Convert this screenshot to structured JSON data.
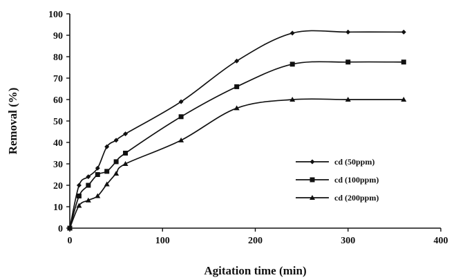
{
  "chart_data": {
    "type": "line",
    "xlabel": "Agitation time (min)",
    "ylabel": "Removal (%)",
    "xlim": [
      0,
      400
    ],
    "ylim": [
      0,
      100
    ],
    "xticks": [
      0,
      100,
      200,
      300,
      400
    ],
    "yticks": [
      0,
      10,
      20,
      30,
      40,
      50,
      60,
      70,
      80,
      90,
      100
    ],
    "grid": false,
    "legend_position": "center-right",
    "series": [
      {
        "name": "cd (50ppm)",
        "marker": "diamond",
        "x": [
          0,
          10,
          20,
          30,
          40,
          50,
          60,
          120,
          180,
          240,
          300,
          360
        ],
        "y": [
          0,
          20,
          24,
          28,
          38,
          41,
          44,
          59,
          78,
          91,
          91.5,
          91.5
        ]
      },
      {
        "name": "cd (100ppm)",
        "marker": "square",
        "x": [
          0,
          10,
          20,
          30,
          40,
          50,
          60,
          120,
          180,
          240,
          300,
          360
        ],
        "y": [
          0,
          15,
          20,
          25,
          26.5,
          31,
          35,
          52,
          66,
          76.5,
          77.5,
          77.5
        ]
      },
      {
        "name": "cd (200ppm)",
        "marker": "triangle",
        "x": [
          0,
          10,
          20,
          30,
          40,
          50,
          60,
          120,
          180,
          240,
          300,
          360
        ],
        "y": [
          0,
          10.5,
          13,
          15,
          20.5,
          25.5,
          30,
          41,
          56,
          60,
          60,
          60
        ]
      }
    ]
  }
}
